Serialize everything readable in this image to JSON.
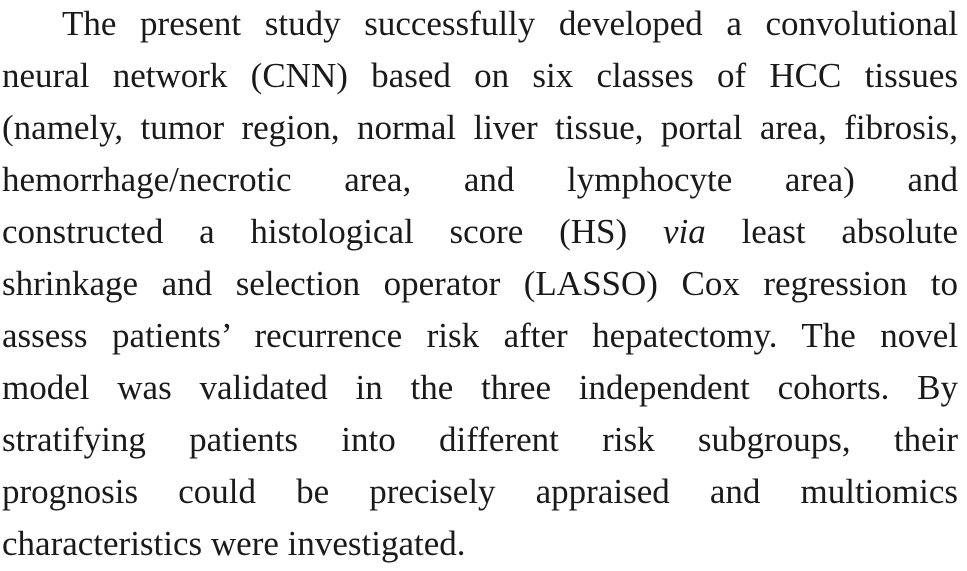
{
  "paragraph": {
    "lines": [
      "The present study successfully developed a convolutional",
      "neural network (CNN) based on six classes of HCC tissues",
      "(namely, tumor region, normal liver tissue, portal area, fibrosis,",
      "hemorrhage/necrotic area, and lymphocyte area) and",
      "constructed a histological score (HS)",
      "via",
      "least absolute",
      "shrinkage and selection operator (LASSO) Cox regression to",
      "assess patients’ recurrence risk after hepatectomy. The novel",
      "model was validated in the three independent cohorts. By",
      "stratifying patients into different risk subgroups, their",
      "prognosis could be precisely appraised and multiomics",
      "characteristics were investigated."
    ]
  }
}
